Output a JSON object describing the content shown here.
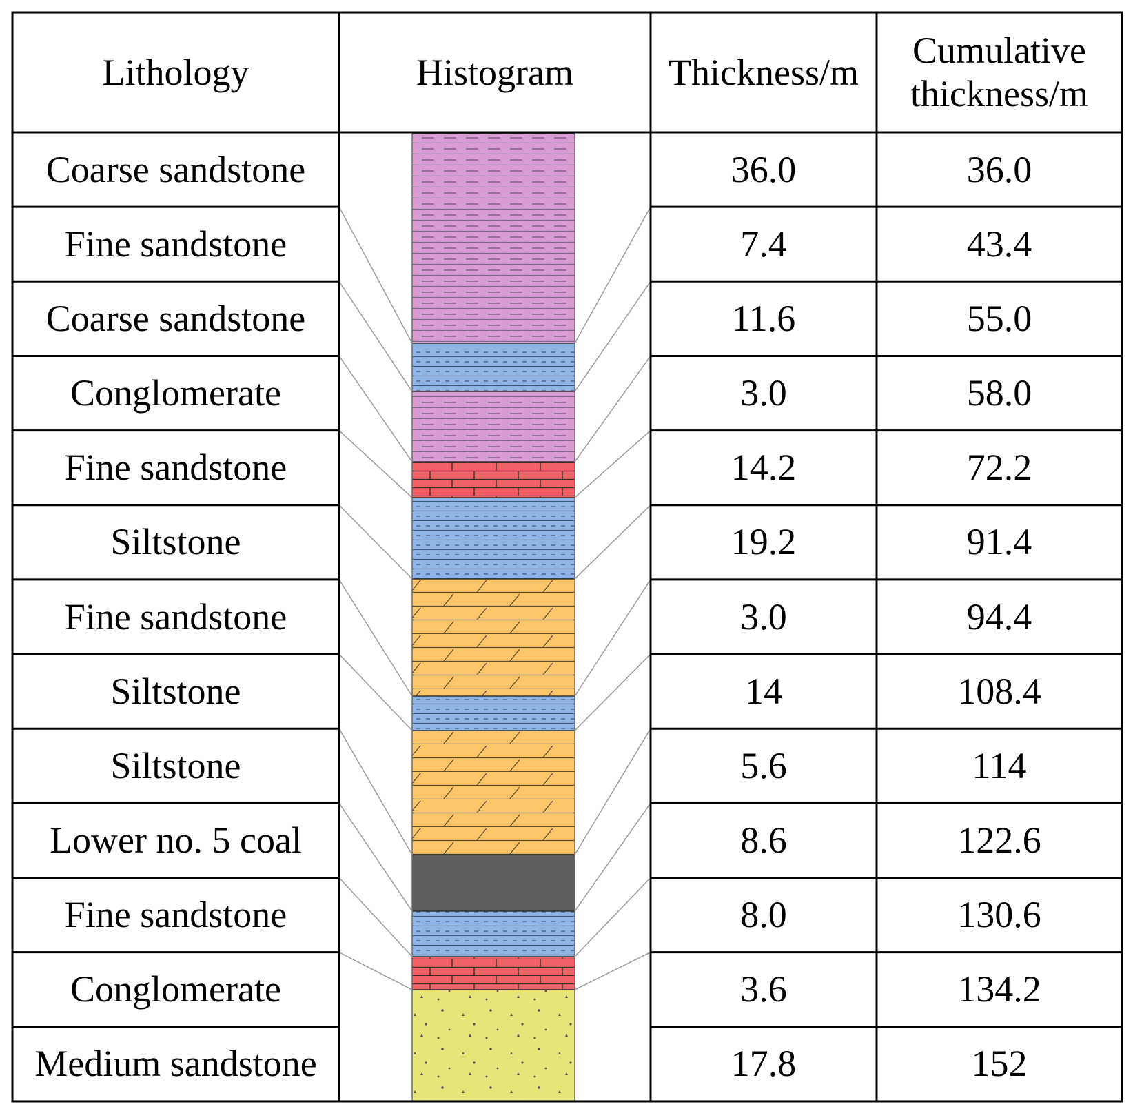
{
  "table": {
    "headers": {
      "lithology": "Lithology",
      "histogram": "Histogram",
      "thickness": "Thickness/m",
      "cumulative_line1": "Cumulative",
      "cumulative_line2": "thickness/m"
    },
    "rows": [
      {
        "lithology": "Coarse sandstone",
        "thickness": "36.0",
        "cumulative": "36.0"
      },
      {
        "lithology": "Fine sandstone",
        "thickness": "7.4",
        "cumulative": "43.4"
      },
      {
        "lithology": "Coarse sandstone",
        "thickness": "11.6",
        "cumulative": "55.0"
      },
      {
        "lithology": "Conglomerate",
        "thickness": "3.0",
        "cumulative": "58.0"
      },
      {
        "lithology": "Fine sandstone",
        "thickness": "14.2",
        "cumulative": "72.2"
      },
      {
        "lithology": "Siltstone",
        "thickness": "19.2",
        "cumulative": "91.4"
      },
      {
        "lithology": "Fine sandstone",
        "thickness": "3.0",
        "cumulative": "94.4"
      },
      {
        "lithology": "Siltstone",
        "thickness": "14",
        "cumulative": "108.4"
      },
      {
        "lithology": "Siltstone",
        "thickness": "5.6",
        "cumulative": "114"
      },
      {
        "lithology": "Lower no. 5 coal",
        "thickness": "8.6",
        "cumulative": "122.6"
      },
      {
        "lithology": "Fine sandstone",
        "thickness": "8.0",
        "cumulative": "130.6"
      },
      {
        "lithology": "Conglomerate",
        "thickness": "3.6",
        "cumulative": "134.2"
      },
      {
        "lithology": "Medium sandstone",
        "thickness": "17.8",
        "cumulative": "152"
      }
    ]
  },
  "histogram_column": {
    "layers": [
      {
        "pattern": "dashed-strata",
        "color": "#d89bd4"
      },
      {
        "pattern": "dotted-strata",
        "color": "#8fb4e6"
      },
      {
        "pattern": "dashed-strata",
        "color": "#d89bd4"
      },
      {
        "pattern": "brick",
        "color": "#f06064"
      },
      {
        "pattern": "dotted-strata",
        "color": "#8fb4e6"
      },
      {
        "pattern": "diagonal-brick",
        "color": "#fdc56a"
      },
      {
        "pattern": "dotted-strata",
        "color": "#8fb4e6"
      },
      {
        "pattern": "diagonal-brick",
        "color": "#fdc56a"
      },
      {
        "pattern": "solid",
        "color": "#5e5e5e"
      },
      {
        "pattern": "dotted-strata",
        "color": "#8fb4e6"
      },
      {
        "pattern": "brick",
        "color": "#f06064"
      },
      {
        "pattern": "speckled",
        "color": "#e5e57a"
      }
    ]
  },
  "colors": {
    "grid_line": "#000000",
    "leader_line": "#a0a0a0"
  }
}
